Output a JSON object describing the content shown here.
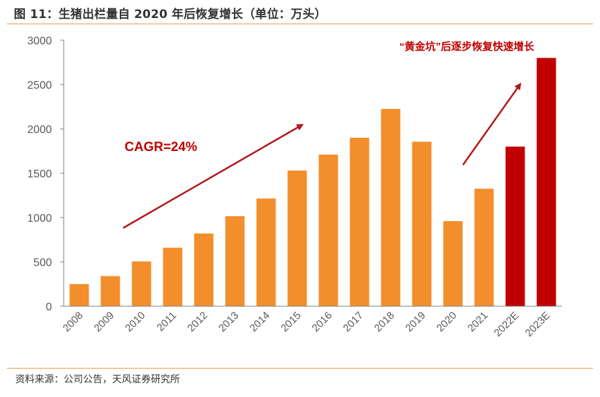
{
  "figure": {
    "title": "图 11：生猪出栏量自 2020 年后恢复增长（单位：万头）",
    "source": "资料来源：公司公告，天风证券研究所"
  },
  "colors": {
    "actual_bar": "#f28e2b",
    "estimate_bar": "#c00000",
    "arrow": "#b01818",
    "annotation": "#c00000",
    "axis": "#808080",
    "tick_text": "#595959",
    "rule": "#e8a24a"
  },
  "chart_data": {
    "type": "bar",
    "title": "",
    "xlabel": "",
    "ylabel": "",
    "ylim": [
      0,
      3000
    ],
    "yticks": [
      0,
      500,
      1000,
      1500,
      2000,
      2500,
      3000
    ],
    "grid": false,
    "categories": [
      "2008",
      "2009",
      "2010",
      "2011",
      "2012",
      "2013",
      "2014",
      "2015",
      "2016",
      "2017",
      "2018",
      "2019",
      "2020",
      "2021",
      "2022E",
      "2023E"
    ],
    "values": [
      250,
      340,
      505,
      660,
      820,
      1015,
      1215,
      1530,
      1710,
      1900,
      2225,
      1855,
      960,
      1325,
      1800,
      2800
    ],
    "estimate_categories": [
      "2022E",
      "2023E"
    ],
    "annotations": {
      "cagr": "CAGR=24%",
      "recovery": "“黄金坑”后逐步恢复快速增长"
    }
  }
}
